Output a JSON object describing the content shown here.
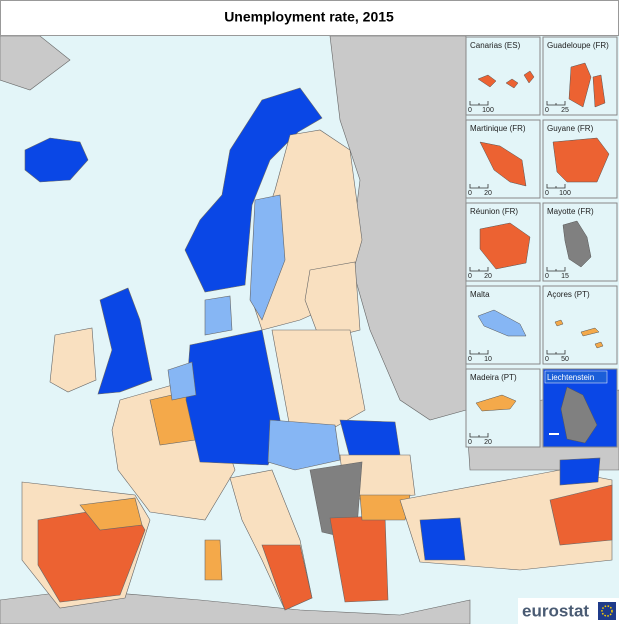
{
  "header": {
    "title": "Unemployment rate, 2015"
  },
  "insets": [
    {
      "label": "Canarias (ES)",
      "scale": [
        0,
        100
      ]
    },
    {
      "label": "Guadeloupe (FR)",
      "scale": [
        0,
        25
      ]
    },
    {
      "label": "Martinique (FR)",
      "scale": [
        0,
        20
      ]
    },
    {
      "label": "Guyane (FR)",
      "scale": [
        0,
        100
      ]
    },
    {
      "label": "Réunion (FR)",
      "scale": [
        0,
        20
      ]
    },
    {
      "label": "Mayotte (FR)",
      "scale": [
        0,
        15
      ]
    },
    {
      "label": "Malta",
      "scale": [
        0,
        10
      ]
    },
    {
      "label": "Açores (PT)",
      "scale": [
        0,
        50
      ]
    },
    {
      "label": "Madeira (PT)",
      "scale": [
        0,
        20
      ]
    },
    {
      "label": "Liechtenstein"
    }
  ],
  "footer": {
    "logo": "eurostat"
  }
}
